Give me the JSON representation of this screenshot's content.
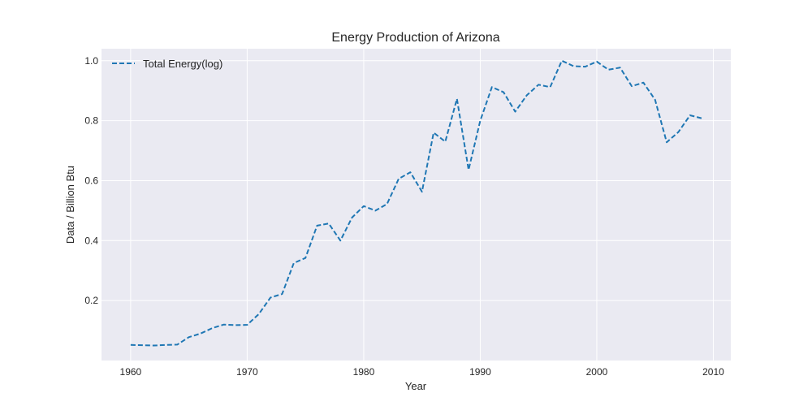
{
  "chart_data": {
    "type": "line",
    "title": "Energy Production of Arizona",
    "xlabel": "Year",
    "ylabel": "Data / Billion Btu",
    "xlim": [
      1957.5,
      2011.5
    ],
    "ylim": [
      0.0,
      1.04
    ],
    "xticks": [
      1960,
      1970,
      1980,
      1990,
      2000,
      2010
    ],
    "yticks": [
      0.2,
      0.4,
      0.6,
      0.8,
      1.0
    ],
    "xtick_labels": [
      "1960",
      "1970",
      "1980",
      "1990",
      "2000",
      "2010"
    ],
    "ytick_labels": [
      "0.2",
      "0.4",
      "0.6",
      "0.8",
      "1.0"
    ],
    "grid": true,
    "legend_position": "top-left",
    "series": [
      {
        "name": "Total Energy(log)",
        "color": "#1f77b4",
        "line_style": "dashed",
        "x": [
          1960,
          1961,
          1962,
          1963,
          1964,
          1965,
          1966,
          1967,
          1968,
          1969,
          1970,
          1971,
          1972,
          1973,
          1974,
          1975,
          1976,
          1977,
          1978,
          1979,
          1980,
          1981,
          1982,
          1983,
          1984,
          1985,
          1986,
          1987,
          1988,
          1989,
          1990,
          1991,
          1992,
          1993,
          1994,
          1995,
          1996,
          1997,
          1998,
          1999,
          2000,
          2001,
          2002,
          2003,
          2004,
          2005,
          2006,
          2007,
          2008,
          2009
        ],
        "values": [
          0.052,
          0.051,
          0.05,
          0.052,
          0.053,
          0.078,
          0.09,
          0.108,
          0.12,
          0.118,
          0.119,
          0.155,
          0.21,
          0.222,
          0.325,
          0.342,
          0.45,
          0.457,
          0.4,
          0.477,
          0.515,
          0.5,
          0.522,
          0.606,
          0.628,
          0.563,
          0.76,
          0.73,
          0.873,
          0.636,
          0.8,
          0.912,
          0.895,
          0.83,
          0.885,
          0.92,
          0.912,
          1.0,
          0.982,
          0.98,
          0.997,
          0.97,
          0.977,
          0.915,
          0.927,
          0.87,
          0.728,
          0.762,
          0.818,
          0.808
        ]
      }
    ]
  }
}
